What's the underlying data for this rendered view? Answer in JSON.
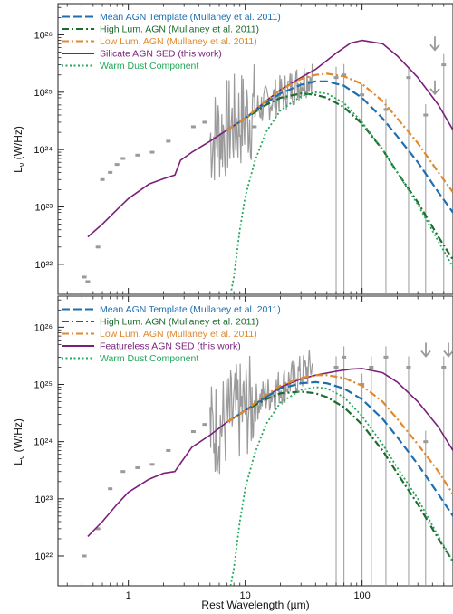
{
  "figure": {
    "xlabel": "Rest Wavelength (µm)"
  },
  "colors": {
    "mean": "#1f6fb0",
    "high": "#1e6b2e",
    "low": "#e0892e",
    "sed": "#7a1f7a",
    "dust": "#22a85a",
    "data": "#9a9a9a"
  },
  "chart_data": [
    {
      "type": "line",
      "panel": "top",
      "xscale": "log",
      "yscale": "log",
      "xlim": [
        0.25,
        600
      ],
      "ylim": [
        3e+21,
        3.5e+26
      ],
      "xlabel": "Rest Wavelength (µm)",
      "ylabel": "L_ν (W/Hz)",
      "x_ticks": [
        {
          "v": 1,
          "label": "1"
        },
        {
          "v": 10,
          "label": "10"
        },
        {
          "v": 100,
          "label": "100"
        }
      ],
      "y_ticks": [
        {
          "v": 1e+22,
          "label": "10²²"
        },
        {
          "v": 1e+23,
          "label": "10²³"
        },
        {
          "v": 1e+24,
          "label": "10²⁴"
        },
        {
          "v": 1e+25,
          "label": "10²⁵"
        },
        {
          "v": 1e+26,
          "label": "10²⁶"
        }
      ],
      "legend": [
        {
          "key": "mean",
          "text": "Mean AGN Template (Mullaney et al. 2011)",
          "color": "#1f6fb0",
          "style": "dashed"
        },
        {
          "key": "high",
          "text": "High Lum. AGN (Mullaney et al. 2011)",
          "color": "#1e6b2e",
          "style": "dashdot"
        },
        {
          "key": "low",
          "text": "Low Lum. AGN (Mullaney et al. 2011)",
          "color": "#e0892e",
          "style": "dashdot"
        },
        {
          "key": "sed",
          "text": "Silicate AGN SED (this work)",
          "color": "#7a1f7a",
          "style": "solid"
        },
        {
          "key": "dust",
          "text": "Warm Dust Component",
          "color": "#22a85a",
          "style": "dotted"
        }
      ],
      "series": [
        {
          "key": "sed",
          "points": [
            [
              0.45,
              3e+22
            ],
            [
              0.6,
              5e+22
            ],
            [
              0.8,
              9e+22
            ],
            [
              1,
              1.4e+23
            ],
            [
              1.5,
              2.5e+23
            ],
            [
              2,
              3.1e+23
            ],
            [
              2.5,
              3.6e+23
            ],
            [
              2.8,
              6.5e+23
            ],
            [
              3.5,
              9e+23
            ],
            [
              5,
              1.4e+24
            ],
            [
              7,
              2.2e+24
            ],
            [
              10,
              3.5e+24
            ],
            [
              15,
              7e+24
            ],
            [
              20,
              1.1e+25
            ],
            [
              30,
              1.8e+25
            ],
            [
              40,
              2.5e+25
            ],
            [
              60,
              4.8e+25
            ],
            [
              80,
              7.2e+25
            ],
            [
              100,
              8e+25
            ],
            [
              150,
              7e+25
            ],
            [
              200,
              4.3e+25
            ],
            [
              300,
              1.8e+25
            ],
            [
              450,
              6e+24
            ],
            [
              600,
              2.2e+24
            ]
          ]
        },
        {
          "key": "mean",
          "points": [
            [
              7,
              2.2e+24
            ],
            [
              10,
              3.5e+24
            ],
            [
              15,
              6.5e+24
            ],
            [
              20,
              9.5e+24
            ],
            [
              30,
              1.35e+25
            ],
            [
              40,
              1.55e+25
            ],
            [
              50,
              1.55e+25
            ],
            [
              70,
              1.3e+25
            ],
            [
              100,
              8e+24
            ],
            [
              150,
              3.5e+24
            ],
            [
              200,
              1.7e+24
            ],
            [
              300,
              6e+23
            ],
            [
              450,
              1.8e+23
            ],
            [
              600,
              8e+22
            ]
          ]
        },
        {
          "key": "high",
          "points": [
            [
              7,
              2.2e+24
            ],
            [
              10,
              3.5e+24
            ],
            [
              15,
              6e+24
            ],
            [
              20,
              8e+24
            ],
            [
              30,
              9.5e+24
            ],
            [
              40,
              9e+24
            ],
            [
              50,
              8e+24
            ],
            [
              70,
              5.5e+24
            ],
            [
              100,
              2.8e+24
            ],
            [
              150,
              1e+24
            ],
            [
              200,
              4e+23
            ],
            [
              300,
              1.2e+23
            ],
            [
              450,
              3e+22
            ],
            [
              600,
              1.2e+22
            ]
          ]
        },
        {
          "key": "low",
          "points": [
            [
              7,
              2.2e+24
            ],
            [
              10,
              3.5e+24
            ],
            [
              15,
              7e+24
            ],
            [
              20,
              1.1e+25
            ],
            [
              30,
              1.7e+25
            ],
            [
              40,
              2e+25
            ],
            [
              50,
              2.1e+25
            ],
            [
              70,
              1.9e+25
            ],
            [
              100,
              1.4e+25
            ],
            [
              150,
              7e+24
            ],
            [
              200,
              3.5e+24
            ],
            [
              300,
              1.3e+24
            ],
            [
              450,
              4e+23
            ],
            [
              600,
              1.8e+23
            ]
          ]
        },
        {
          "key": "dust",
          "points": [
            [
              7.5,
              3e+21
            ],
            [
              8,
              6e+21
            ],
            [
              9,
              4e+22
            ],
            [
              10,
              1.5e+23
            ],
            [
              12,
              6e+23
            ],
            [
              15,
              2e+24
            ],
            [
              20,
              4.8e+24
            ],
            [
              30,
              8.5e+24
            ],
            [
              40,
              1e+25
            ],
            [
              50,
              9.5e+24
            ],
            [
              70,
              6.5e+24
            ],
            [
              100,
              3e+24
            ],
            [
              150,
              1e+24
            ],
            [
              200,
              4e+23
            ],
            [
              300,
              1.1e+23
            ],
            [
              450,
              2.5e+22
            ],
            [
              600,
              9e+21
            ]
          ]
        }
      ]
    },
    {
      "type": "line",
      "panel": "bottom",
      "xscale": "log",
      "yscale": "log",
      "xlim": [
        0.25,
        600
      ],
      "ylim": [
        3e+21,
        3.5e+26
      ],
      "xlabel": "Rest Wavelength (µm)",
      "ylabel": "L_ν (W/Hz)",
      "x_ticks": [
        {
          "v": 1,
          "label": "1"
        },
        {
          "v": 10,
          "label": "10"
        },
        {
          "v": 100,
          "label": "100"
        }
      ],
      "y_ticks": [
        {
          "v": 1e+22,
          "label": "10²²"
        },
        {
          "v": 1e+23,
          "label": "10²³"
        },
        {
          "v": 1e+24,
          "label": "10²⁴"
        },
        {
          "v": 1e+25,
          "label": "10²⁵"
        },
        {
          "v": 1e+26,
          "label": "10²⁶"
        }
      ],
      "legend": [
        {
          "key": "mean",
          "text": "Mean AGN Template (Mullaney et al. 2011)",
          "color": "#1f6fb0",
          "style": "dashed"
        },
        {
          "key": "high",
          "text": "High Lum. AGN (Mullaney et al. 2011)",
          "color": "#1e6b2e",
          "style": "dashdot"
        },
        {
          "key": "low",
          "text": "Low Lum. AGN (Mullaney et al. 2011)",
          "color": "#e0892e",
          "style": "dashdot"
        },
        {
          "key": "sed",
          "text": "Featureless AGN SED (this work)",
          "color": "#7a1f7a",
          "style": "solid"
        },
        {
          "key": "dust",
          "text": "Warm Dust Component",
          "color": "#22a85a",
          "style": "dotted"
        }
      ],
      "series": [
        {
          "key": "sed",
          "points": [
            [
              0.45,
              2.2e+22
            ],
            [
              0.6,
              4e+22
            ],
            [
              0.8,
              8e+22
            ],
            [
              1,
              1.3e+23
            ],
            [
              1.5,
              2.2e+23
            ],
            [
              2,
              2.8e+23
            ],
            [
              2.5,
              3e+23
            ],
            [
              2.8,
              4.2e+23
            ],
            [
              3.5,
              8e+23
            ],
            [
              5,
              1.3e+24
            ],
            [
              7,
              2.2e+24
            ],
            [
              10,
              3.5e+24
            ],
            [
              15,
              6e+24
            ],
            [
              20,
              9e+24
            ],
            [
              30,
              1.25e+25
            ],
            [
              40,
              1.45e+25
            ],
            [
              60,
              1.7e+25
            ],
            [
              80,
              1.85e+25
            ],
            [
              100,
              1.9e+25
            ],
            [
              150,
              1.6e+25
            ],
            [
              200,
              1.1e+25
            ],
            [
              300,
              5e+24
            ],
            [
              450,
              1.8e+24
            ],
            [
              600,
              7e+23
            ]
          ]
        },
        {
          "key": "mean",
          "points": [
            [
              7,
              2.2e+24
            ],
            [
              10,
              3.5e+24
            ],
            [
              15,
              6e+24
            ],
            [
              20,
              8.5e+24
            ],
            [
              30,
              1.05e+25
            ],
            [
              40,
              1.1e+25
            ],
            [
              50,
              1.05e+25
            ],
            [
              70,
              8.5e+24
            ],
            [
              100,
              5.5e+24
            ],
            [
              150,
              2.5e+24
            ],
            [
              200,
              1.2e+24
            ],
            [
              300,
              4e+23
            ],
            [
              450,
              1.2e+23
            ],
            [
              600,
              5e+22
            ]
          ]
        },
        {
          "key": "high",
          "points": [
            [
              7,
              2.2e+24
            ],
            [
              10,
              3.5e+24
            ],
            [
              15,
              5.5e+24
            ],
            [
              20,
              7e+24
            ],
            [
              30,
              7.5e+24
            ],
            [
              40,
              7e+24
            ],
            [
              50,
              6e+24
            ],
            [
              70,
              4e+24
            ],
            [
              100,
              2e+24
            ],
            [
              150,
              7e+23
            ],
            [
              200,
              2.8e+23
            ],
            [
              300,
              8e+22
            ],
            [
              450,
              2e+22
            ],
            [
              600,
              8e+21
            ]
          ]
        },
        {
          "key": "low",
          "points": [
            [
              7,
              2.2e+24
            ],
            [
              10,
              3.5e+24
            ],
            [
              15,
              6.5e+24
            ],
            [
              20,
              9.5e+24
            ],
            [
              30,
              1.3e+25
            ],
            [
              40,
              1.45e+25
            ],
            [
              50,
              1.45e+25
            ],
            [
              70,
              1.3e+25
            ],
            [
              100,
              9.5e+24
            ],
            [
              150,
              5e+24
            ],
            [
              200,
              2.5e+24
            ],
            [
              300,
              9e+23
            ],
            [
              450,
              3e+23
            ],
            [
              600,
              1.2e+23
            ]
          ]
        },
        {
          "key": "dust",
          "points": [
            [
              7.5,
              3e+21
            ],
            [
              8,
              6e+21
            ],
            [
              9,
              4e+22
            ],
            [
              10,
              1.5e+23
            ],
            [
              12,
              6e+23
            ],
            [
              15,
              2e+24
            ],
            [
              20,
              4.8e+24
            ],
            [
              30,
              8e+24
            ],
            [
              40,
              9e+24
            ],
            [
              50,
              8.5e+24
            ],
            [
              70,
              6e+24
            ],
            [
              100,
              2.8e+24
            ],
            [
              150,
              9e+23
            ],
            [
              200,
              3.5e+23
            ],
            [
              300,
              1e+23
            ],
            [
              450,
              2.2e+22
            ],
            [
              600,
              8e+21
            ]
          ]
        }
      ]
    }
  ]
}
